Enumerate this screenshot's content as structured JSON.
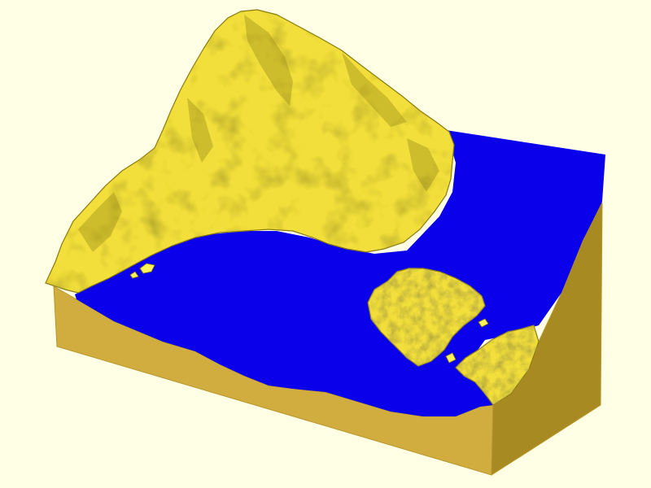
{
  "viewer": {
    "background_color": "#ffffe5"
  },
  "model": {
    "type": "terrain relief model",
    "land_color": "#f2df3a",
    "land_shadow_color": "#8a7a12",
    "land_highlight_color": "#fff35a",
    "water_color": "#0a00ea",
    "base_front_color": "#d0ad3e",
    "base_side_color": "#a88a22",
    "base_edge_color": "#b8962c"
  }
}
